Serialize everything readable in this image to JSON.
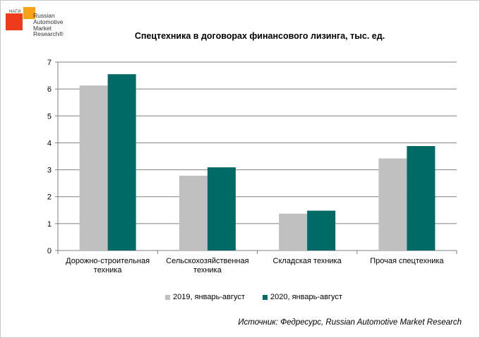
{
  "logo": {
    "small_text": "НАГИ",
    "brand_lines": [
      "Russian",
      "Automotive",
      "Market",
      "Research®"
    ]
  },
  "colors": {
    "series_2019": "#c0c0c0",
    "series_2020": "#006a66",
    "grid": "#808080",
    "logo_red": "#ee3b1c",
    "logo_orange": "#f8a218"
  },
  "chart_data": {
    "type": "bar",
    "title": "Спецтехника в договорах финансового лизинга, тыс. ед.",
    "categories": [
      [
        "Дорожно-строительная",
        "техника"
      ],
      [
        "Сельскохозяйственная",
        "техника"
      ],
      [
        "Складская техника"
      ],
      [
        "Прочая спецтехника"
      ]
    ],
    "series": [
      {
        "name": "2019, январь-август",
        "values": [
          6.13,
          2.78,
          1.37,
          3.42
        ]
      },
      {
        "name": "2020, январь-август",
        "values": [
          6.55,
          3.09,
          1.48,
          3.88
        ]
      }
    ],
    "ylim": [
      0,
      7
    ],
    "yticks": [
      0,
      1,
      2,
      3,
      4,
      5,
      6,
      7
    ],
    "grid": true,
    "legend_position": "bottom"
  },
  "source": "Источник: Федресурс, Russian Automotive Market Research"
}
